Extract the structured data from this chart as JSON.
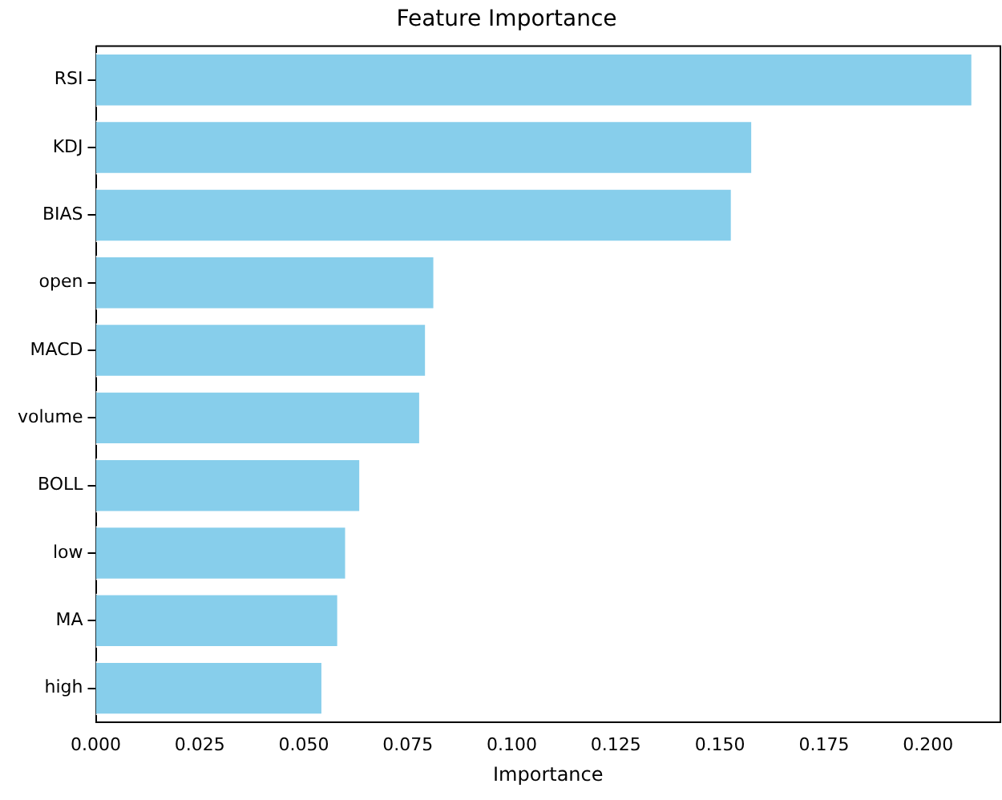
{
  "chart_data": {
    "type": "bar",
    "orientation": "horizontal",
    "title": "Feature Importance",
    "xlabel": "Importance",
    "categories": [
      "RSI",
      "KDJ",
      "BIAS",
      "open",
      "MACD",
      "volume",
      "BOLL",
      "low",
      "MA",
      "high"
    ],
    "values": [
      0.2108,
      0.1579,
      0.153,
      0.0815,
      0.0795,
      0.0781,
      0.0637,
      0.0603,
      0.0584,
      0.0546
    ],
    "color": "#87ceeb",
    "xlim": [
      0,
      0.2174
    ],
    "xticks": [
      {
        "value": 0,
        "label": "0.000"
      },
      {
        "value": 0.025,
        "label": "0.025"
      },
      {
        "value": 0.05,
        "label": "0.050"
      },
      {
        "value": 0.075,
        "label": "0.075"
      },
      {
        "value": 0.1,
        "label": "0.100"
      },
      {
        "value": 0.125,
        "label": "0.125"
      },
      {
        "value": 0.15,
        "label": "0.150"
      },
      {
        "value": 0.175,
        "label": "0.175"
      },
      {
        "value": 0.2,
        "label": "0.200"
      }
    ],
    "grid": false,
    "legend": false
  }
}
